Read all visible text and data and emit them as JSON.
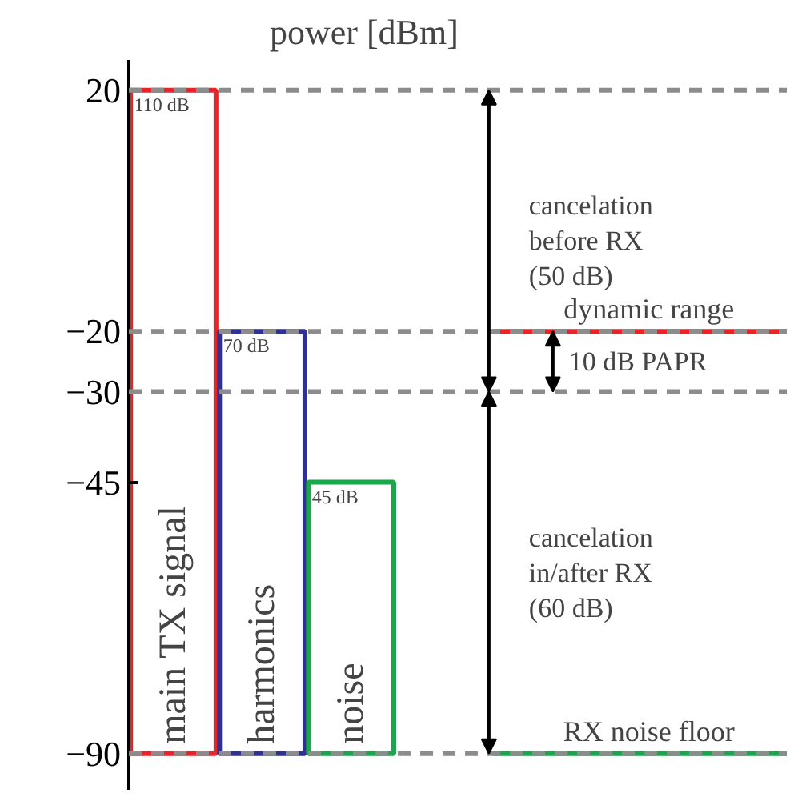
{
  "chart_data": {
    "type": "bar",
    "ylabel": "power [dBm]",
    "categories": [
      "main TX signal",
      "harmonics",
      "noise"
    ],
    "base": [
      -90,
      -90,
      -90
    ],
    "values": [
      110,
      70,
      45
    ],
    "colors": [
      "#e8242b",
      "#2e3192",
      "#1aa64a"
    ],
    "value_labels": [
      "110 dB",
      "70 dB",
      "45 dB"
    ],
    "ylim": [
      -96,
      25
    ],
    "yticks": [
      20,
      -20,
      -30,
      -45,
      -90
    ],
    "grid": false,
    "ref_lines": [
      {
        "axis": "y",
        "value": 20,
        "color": "#8c8c8c",
        "line_style": "dashed"
      },
      {
        "axis": "y",
        "value": -20,
        "color": "#8c8c8c",
        "line_style": "dashed"
      },
      {
        "axis": "y",
        "value": -30,
        "color": "#8c8c8c",
        "line_style": "dashed"
      },
      {
        "axis": "y",
        "value": -90,
        "color": "#8c8c8c",
        "line_style": "dashed"
      },
      {
        "axis": "y",
        "value": -20,
        "label": "dynamic range",
        "color": "#e8242b",
        "line_style": "solid"
      },
      {
        "axis": "y",
        "value": -90,
        "label": "RX noise floor",
        "color": "#1aa64a",
        "line_style": "solid"
      }
    ],
    "annotations": [
      "cancelation\nbefore    RX\n(50 dB)",
      "10 dB PAPR",
      "cancelation\nin/after RX\n(60 dB)"
    ]
  }
}
